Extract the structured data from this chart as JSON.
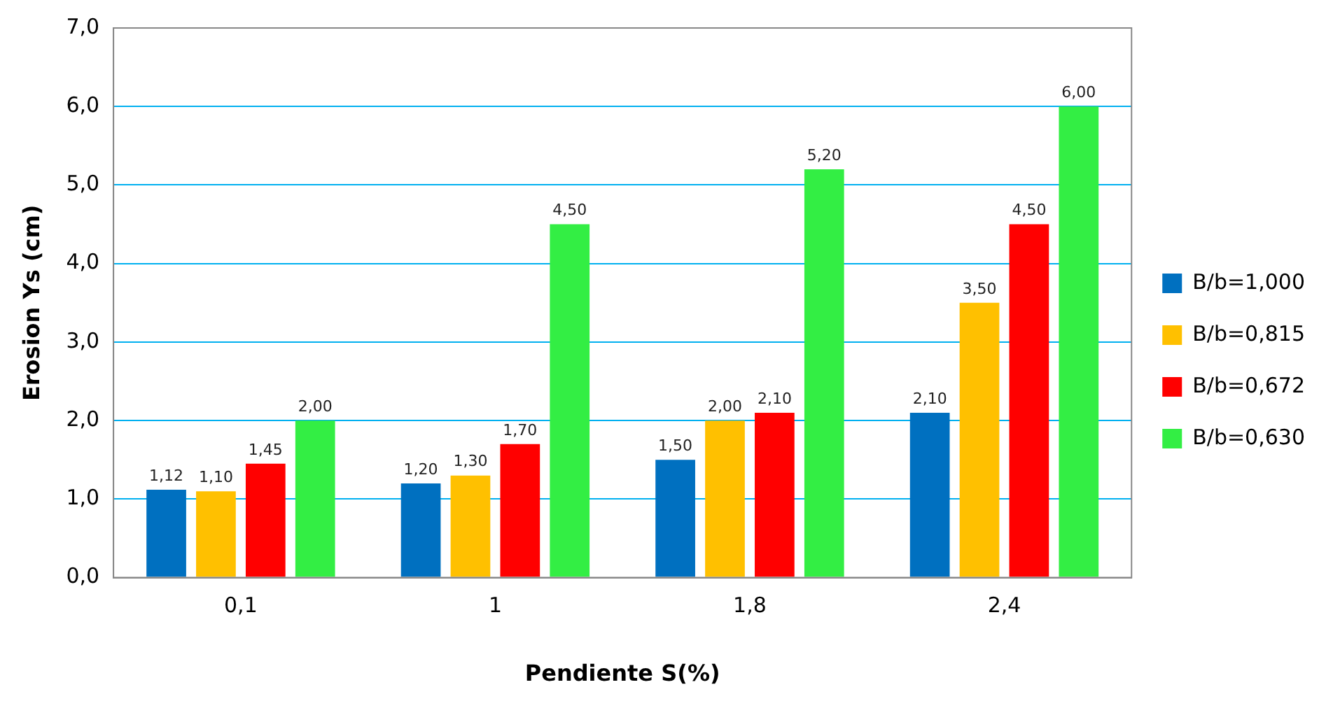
{
  "chart_data": {
    "type": "bar",
    "xlabel": "Pendiente S(%)",
    "ylabel": "Erosion Ys (cm)",
    "categories": [
      "0,1",
      "1",
      "1,8",
      "2,4"
    ],
    "series": [
      {
        "name": "B/b=1,000",
        "color": "#0070c0",
        "values": [
          1.12,
          1.2,
          1.5,
          2.1
        ],
        "value_labels": [
          "1,12",
          "1,20",
          "1,50",
          "2,10"
        ]
      },
      {
        "name": "B/b=0,815",
        "color": "#ffc000",
        "values": [
          1.1,
          1.3,
          2.0,
          3.5
        ],
        "value_labels": [
          "1,10",
          "1,30",
          "2,00",
          "3,50"
        ]
      },
      {
        "name": "B/b=0,672",
        "color": "#ff0000",
        "values": [
          1.45,
          1.7,
          2.1,
          4.5
        ],
        "value_labels": [
          "1,45",
          "1,70",
          "2,10",
          "4,50"
        ]
      },
      {
        "name": "B/b=0,630",
        "color": "#33ee44",
        "values": [
          2.0,
          4.5,
          5.2,
          6.0
        ],
        "value_labels": [
          "2,00",
          "4,50",
          "5,20",
          "6,00"
        ]
      }
    ],
    "ylim": [
      0,
      7
    ],
    "yticks": [
      {
        "value": 0,
        "label": "0,0"
      },
      {
        "value": 1,
        "label": "1,0"
      },
      {
        "value": 2,
        "label": "2,0"
      },
      {
        "value": 3,
        "label": "3,0"
      },
      {
        "value": 4,
        "label": "4,0"
      },
      {
        "value": 5,
        "label": "5,0"
      },
      {
        "value": 6,
        "label": "6,0"
      },
      {
        "value": 7,
        "label": "7,0"
      }
    ],
    "grid": "y",
    "legend": "right"
  }
}
